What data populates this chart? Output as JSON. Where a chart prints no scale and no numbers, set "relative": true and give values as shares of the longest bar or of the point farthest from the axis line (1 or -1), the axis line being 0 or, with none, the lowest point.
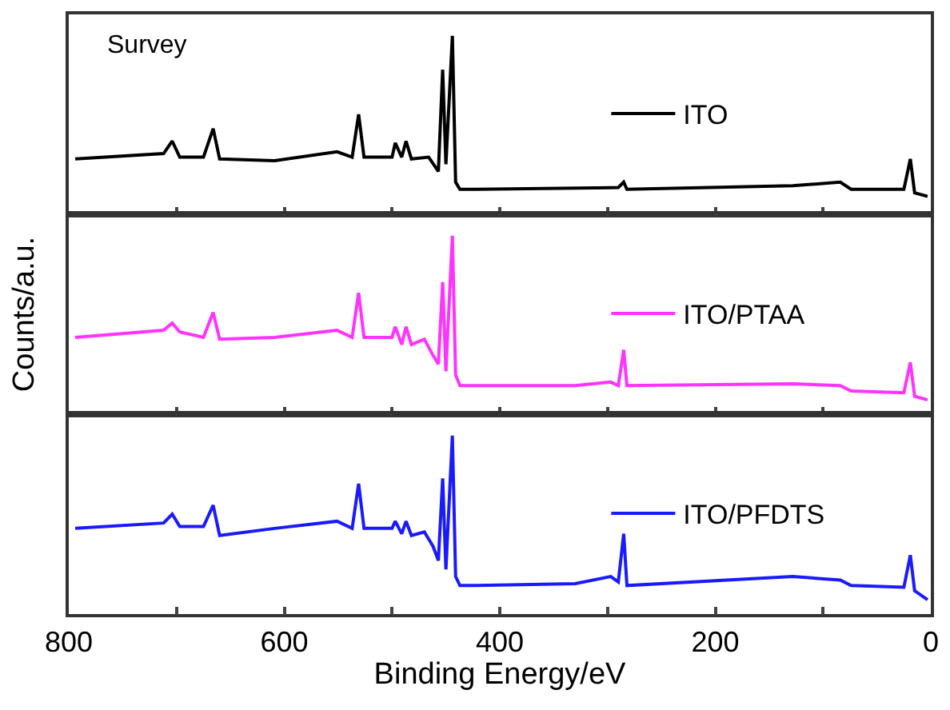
{
  "chart_data": [
    {
      "type": "line",
      "title": "Survey",
      "relative": true,
      "xlim": [
        800,
        0
      ],
      "xticks": [
        800,
        {
          "value": 700,
          "label": null
        },
        600,
        {
          "value": 500,
          "label": null
        },
        400,
        {
          "value": 300,
          "label": null
        },
        200,
        {
          "value": 100,
          "label": null
        },
        0
      ],
      "tick_labels": false,
      "legend": "right",
      "grid": false,
      "marker": "none",
      "line_style": "solid",
      "series": [
        {
          "name": "ITO",
          "color": "#000000",
          "x": [
            794,
            712,
            704,
            697,
            675,
            666,
            660,
            609,
            551,
            537,
            531,
            526,
            500,
            497,
            491,
            487,
            482,
            466,
            457,
            453,
            450,
            444,
            441,
            437,
            422,
            290,
            285,
            282,
            128,
            84,
            74,
            25,
            19,
            15,
            3
          ],
          "values": [
            0.31,
            0.34,
            0.41,
            0.32,
            0.32,
            0.48,
            0.31,
            0.3,
            0.35,
            0.32,
            0.56,
            0.32,
            0.32,
            0.4,
            0.32,
            0.41,
            0.31,
            0.32,
            0.24,
            0.81,
            0.28,
            1.0,
            0.18,
            0.14,
            0.14,
            0.15,
            0.18,
            0.14,
            0.16,
            0.18,
            0.14,
            0.14,
            0.31,
            0.12,
            0.1
          ]
        }
      ]
    },
    {
      "type": "line",
      "relative": true,
      "xlim": [
        800,
        0
      ],
      "xticks": [
        800,
        {
          "value": 700,
          "label": null
        },
        600,
        {
          "value": 500,
          "label": null
        },
        400,
        {
          "value": 300,
          "label": null
        },
        200,
        {
          "value": 100,
          "label": null
        },
        0
      ],
      "tick_labels": false,
      "ylabel": "Counts/a.u.",
      "legend": "right",
      "grid": false,
      "marker": "none",
      "line_style": "solid",
      "series": [
        {
          "name": "ITO/PTAA",
          "color": "#ff33ff",
          "x": [
            794,
            712,
            704,
            697,
            675,
            666,
            660,
            609,
            551,
            537,
            531,
            526,
            500,
            497,
            491,
            487,
            482,
            470,
            462,
            457,
            453,
            450,
            444,
            441,
            437,
            422,
            330,
            297,
            290,
            285,
            282,
            128,
            84,
            74,
            25,
            19,
            15,
            3
          ],
          "values": [
            0.43,
            0.47,
            0.51,
            0.46,
            0.43,
            0.57,
            0.42,
            0.43,
            0.47,
            0.43,
            0.68,
            0.43,
            0.43,
            0.49,
            0.39,
            0.49,
            0.39,
            0.42,
            0.33,
            0.28,
            0.74,
            0.24,
            1.0,
            0.22,
            0.16,
            0.16,
            0.16,
            0.18,
            0.16,
            0.36,
            0.16,
            0.17,
            0.16,
            0.13,
            0.12,
            0.29,
            0.1,
            0.08
          ]
        }
      ]
    },
    {
      "type": "line",
      "relative": true,
      "xlim": [
        800,
        0
      ],
      "xticks": [
        800,
        {
          "value": 700,
          "label": null
        },
        600,
        {
          "value": 500,
          "label": null
        },
        400,
        {
          "value": 300,
          "label": null
        },
        200,
        {
          "value": 100,
          "label": null
        },
        0
      ],
      "tick_labels": "x",
      "xlabel": "Binding Energy/eV",
      "legend": "right",
      "grid": false,
      "marker": "none",
      "line_style": "solid",
      "series": [
        {
          "name": "ITO/PFDTS",
          "color": "#1a1aff",
          "x": [
            794,
            712,
            704,
            697,
            675,
            666,
            660,
            609,
            551,
            537,
            531,
            526,
            500,
            497,
            491,
            487,
            482,
            470,
            462,
            457,
            453,
            450,
            444,
            441,
            437,
            422,
            330,
            297,
            290,
            285,
            282,
            128,
            84,
            74,
            25,
            19,
            15,
            3
          ],
          "values": [
            0.48,
            0.51,
            0.56,
            0.49,
            0.49,
            0.61,
            0.44,
            0.48,
            0.52,
            0.48,
            0.73,
            0.48,
            0.48,
            0.52,
            0.45,
            0.52,
            0.44,
            0.46,
            0.38,
            0.3,
            0.76,
            0.25,
            1.0,
            0.21,
            0.16,
            0.16,
            0.17,
            0.21,
            0.18,
            0.45,
            0.16,
            0.21,
            0.19,
            0.16,
            0.15,
            0.33,
            0.13,
            0.08
          ]
        }
      ]
    }
  ]
}
